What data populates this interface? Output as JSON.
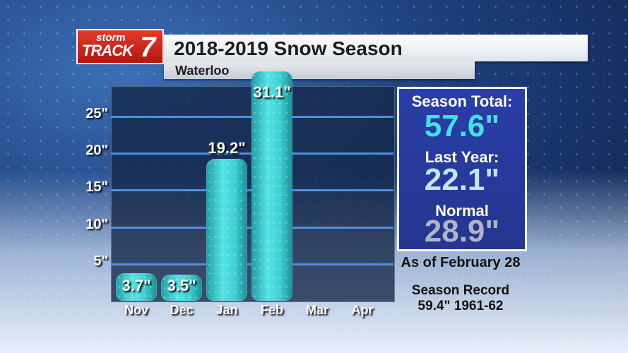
{
  "logo": {
    "line1": "storm",
    "line2": "TRACK",
    "number": "7"
  },
  "header": {
    "title": "2018-2019 Snow Season",
    "subtitle": "Waterloo"
  },
  "colors": {
    "bar": "#3fd0d3",
    "gridline": "#4f8fe0",
    "box_bg": "#2a3ea8",
    "season_total_value": "#3ee3e8",
    "last_year_value": "#bfe6f2",
    "normal_value": "#aeb6c6"
  },
  "chart_data": {
    "type": "bar",
    "categories": [
      "Nov",
      "Dec",
      "Jan",
      "Feb",
      "Mar",
      "Apr"
    ],
    "values": [
      3.7,
      3.5,
      19.2,
      31.1,
      null,
      null
    ],
    "data_labels": [
      "3.7\"",
      "3.5\"",
      "19.2\"",
      "31.1\"",
      "",
      ""
    ],
    "yticks": [
      5,
      10,
      15,
      20,
      25
    ],
    "ytick_labels": [
      "5\"",
      "10\"",
      "15\"",
      "20\"",
      "25\""
    ],
    "ylim": [
      0,
      29
    ],
    "title": "",
    "xlabel": "",
    "ylabel": "",
    "grid": true
  },
  "stats": {
    "season_total_label": "Season Total:",
    "season_total_value": "57.6\"",
    "last_year_label": "Last Year:",
    "last_year_value": "22.1\"",
    "normal_label": "Normal",
    "normal_value": "28.9\""
  },
  "footer": {
    "as_of": "As of February 28",
    "record_label": "Season Record",
    "record_value": "59.4\" 1961-62"
  }
}
